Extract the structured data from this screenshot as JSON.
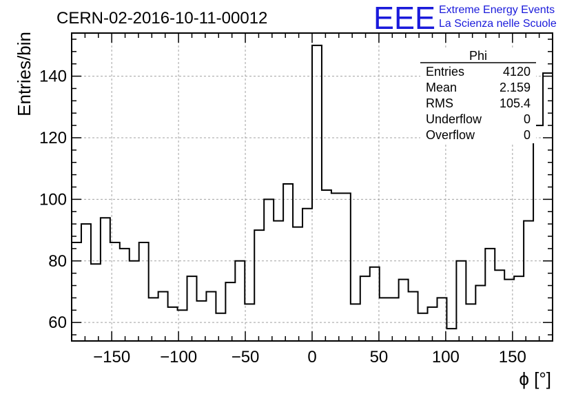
{
  "chart_data": {
    "type": "bar",
    "title": "CERN-02-2016-10-11-00012",
    "xlabel": "ϕ [°]",
    "ylabel": "Entries/bin",
    "xlim": [
      -180,
      180
    ],
    "ylim": [
      54,
      154
    ],
    "bin_width": 7.2,
    "x_ticks": [
      -150,
      -100,
      -50,
      0,
      50,
      100,
      150
    ],
    "x_tick_labels": [
      "−150",
      "−100",
      "−50",
      "0",
      "50",
      "100",
      "150"
    ],
    "y_ticks": [
      60,
      80,
      100,
      120,
      140
    ],
    "y_tick_labels": [
      "60",
      "80",
      "100",
      "120",
      "140"
    ],
    "grid": true,
    "series": [
      {
        "values": [
          86,
          92,
          79,
          94,
          86,
          84,
          80,
          86,
          68,
          70,
          65,
          64,
          75,
          67,
          70,
          63,
          73,
          80,
          66,
          90,
          100,
          93,
          105,
          91,
          97,
          150,
          103,
          102,
          102,
          66,
          75,
          78,
          68,
          68,
          74,
          70,
          63,
          65,
          68,
          58,
          80,
          66,
          72,
          84,
          77,
          74,
          75,
          93,
          124,
          141
        ]
      }
    ],
    "stats_box": {
      "title": "Phi",
      "rows": [
        {
          "label": "Entries",
          "value": "4120"
        },
        {
          "label": "Mean",
          "value": "2.159"
        },
        {
          "label": "RMS",
          "value": "105.4"
        },
        {
          "label": "Underflow",
          "value": "0"
        },
        {
          "label": "Overflow",
          "value": "0"
        }
      ]
    },
    "logo": {
      "mark": "EEE",
      "line1": "Extreme Energy Events",
      "line2": "La Scienza nelle Scuole",
      "color": "#1a1adb"
    }
  }
}
